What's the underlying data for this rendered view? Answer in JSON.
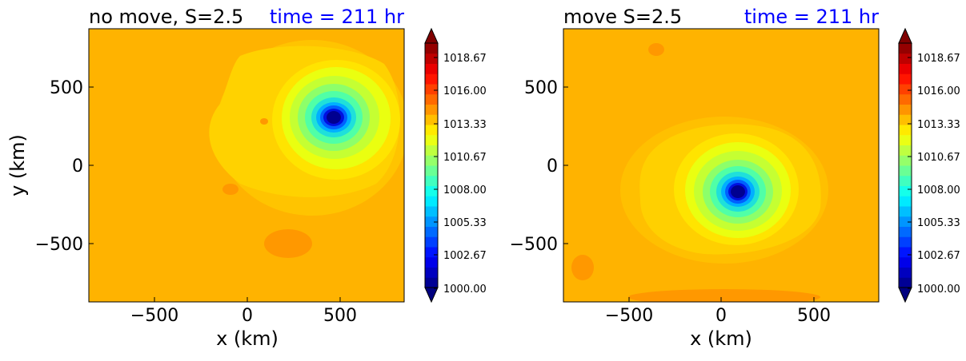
{
  "chart_data": [
    {
      "type": "heatmap",
      "title": "no move, S=2.5",
      "time_label": "time = 211 hr",
      "time_color": "#0000ff",
      "xlabel": "x (km)",
      "ylabel": "y (km)",
      "xlim": [
        -850,
        850
      ],
      "ylim": [
        -850,
        850
      ],
      "xticks": [
        "−500",
        "0",
        "500"
      ],
      "yticks": [
        "500",
        "0",
        "−500"
      ],
      "vortex_center": [
        470,
        300
      ],
      "min_pressure": 1000.0,
      "colorbar": {
        "ticks": [
          "1018.67",
          "1016.00",
          "1013.33",
          "1010.67",
          "1008.00",
          "1005.33",
          "1002.67",
          "1000.00"
        ]
      }
    },
    {
      "type": "heatmap",
      "title": "move S=2.5",
      "time_label": "time = 211 hr",
      "time_color": "#0000ff",
      "xlabel": "x (km)",
      "ylabel": "",
      "xlim": [
        -850,
        850
      ],
      "ylim": [
        -850,
        850
      ],
      "xticks": [
        "−500",
        "0",
        "500"
      ],
      "yticks": [
        "500",
        "0",
        "−500"
      ],
      "vortex_center": [
        110,
        -160
      ],
      "min_pressure": 1000.0,
      "colorbar": {
        "ticks": [
          "1018.67",
          "1016.00",
          "1013.33",
          "1010.67",
          "1008.00",
          "1005.33",
          "1002.67",
          "1000.00"
        ]
      }
    }
  ],
  "colors": {
    "background_field": "#ffb300",
    "colormap": "jet"
  }
}
